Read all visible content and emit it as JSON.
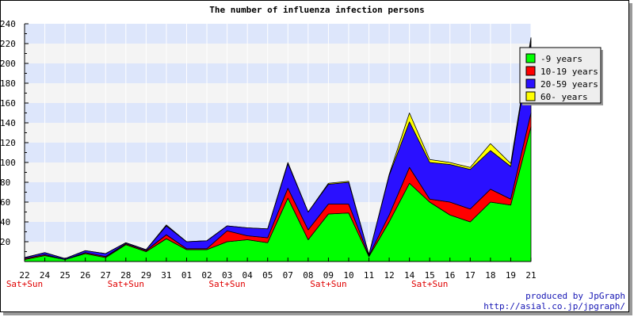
{
  "chart_data": {
    "type": "area",
    "stacked": true,
    "title": "The number of influenza infection persons",
    "xlabel": "",
    "ylabel": "",
    "ylim": [
      0,
      240
    ],
    "yticks": [
      20,
      40,
      60,
      80,
      100,
      120,
      140,
      160,
      180,
      200,
      220,
      240
    ],
    "categories": [
      "22",
      "24",
      "25",
      "26",
      "27",
      "28",
      "29",
      "31",
      "01",
      "02",
      "03",
      "04",
      "05",
      "07",
      "08",
      "09",
      "10",
      "11",
      "12",
      "14",
      "15",
      "16",
      "17",
      "18",
      "19",
      "21"
    ],
    "weekend_labels": [
      {
        "category": "22",
        "text": "Sat+Sun"
      },
      {
        "category": "28",
        "text": "Sat+Sun"
      },
      {
        "category": "03",
        "text": "Sat+Sun"
      },
      {
        "category": "09",
        "text": "Sat+Sun"
      },
      {
        "category": "15",
        "text": "Sat+Sun"
      }
    ],
    "grid": true,
    "band_colors": [
      "#dde6fb",
      "#f4f4f4"
    ],
    "legend_position": "top-right",
    "series": [
      {
        "name": "-9 years",
        "color": "#00ff00",
        "values": [
          2,
          6,
          2,
          8,
          4,
          17,
          10,
          23,
          12,
          12,
          20,
          22,
          19,
          64,
          22,
          48,
          49,
          5,
          40,
          79,
          60,
          47,
          40,
          60,
          57,
          136
        ]
      },
      {
        "name": "10-19 years",
        "color": "#ff0000",
        "values": [
          1,
          1,
          0,
          1,
          1,
          1,
          1,
          4,
          1,
          1,
          11,
          4,
          5,
          10,
          10,
          10,
          9,
          1,
          7,
          16,
          3,
          13,
          13,
          13,
          6,
          14
        ]
      },
      {
        "name": "20-59 years",
        "color": "#2a10ff",
        "values": [
          1,
          2,
          1,
          2,
          3,
          1,
          1,
          9,
          7,
          8,
          5,
          8,
          9,
          25,
          18,
          20,
          22,
          1,
          40,
          46,
          37,
          38,
          40,
          39,
          33,
          72
        ]
      },
      {
        "name": "60- years",
        "color": "#ffff00",
        "values": [
          0,
          0,
          0,
          0,
          0,
          0,
          0,
          1,
          0,
          0,
          0,
          0,
          0,
          1,
          0,
          1,
          1,
          0,
          1,
          9,
          3,
          2,
          2,
          7,
          3,
          4
        ]
      }
    ]
  },
  "footer": {
    "credit_line1": "produced by JpGraph",
    "credit_line2": "http://asial.co.jp/jpgraph/"
  }
}
